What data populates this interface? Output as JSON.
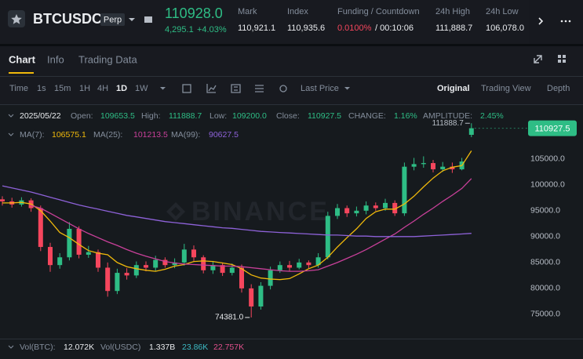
{
  "header": {
    "symbol": "BTCUSDC",
    "badge": "Perp",
    "price": "110928.0",
    "change": "4,295.1",
    "change_pct": "+4.03%",
    "stats": [
      {
        "label": "Mark",
        "value": "110,921.1"
      },
      {
        "label": "Index",
        "value": "110,935.6"
      },
      {
        "label": "Funding / Countdown",
        "value": "0.0100%",
        "extra": "/ 00:10:06"
      },
      {
        "label": "24h High",
        "value": "111,888.7"
      },
      {
        "label": "24h Low",
        "value": "106,078.0"
      }
    ]
  },
  "tabs": [
    "Chart",
    "Info",
    "Trading Data"
  ],
  "toolbar": {
    "intervals": [
      "Time",
      "1s",
      "15m",
      "1H",
      "4H",
      "1D",
      "1W"
    ],
    "price_type": "Last Price",
    "views": [
      "Original",
      "Trading View",
      "Depth"
    ]
  },
  "info": {
    "date": "2025/05/22",
    "fields": [
      {
        "label": "Open:",
        "value": "109653.5"
      },
      {
        "label": "High:",
        "value": "111888.7"
      },
      {
        "label": "Low:",
        "value": "109200.0"
      },
      {
        "label": "Close:",
        "value": "110927.5"
      },
      {
        "label": "CHANGE:",
        "value": "1.16%"
      },
      {
        "label": "AMPLITUDE:",
        "value": "2.45%"
      }
    ]
  },
  "volume_legend": {
    "vol_btc_label": "Vol(BTC):",
    "vol_btc": "12.072K",
    "vol_usdc_label": "Vol(USDC)",
    "vol_usdc": "1.337B",
    "ma5": "23.86K",
    "ma10": "22.757K"
  },
  "chart_data": {
    "type": "candlestick",
    "up_color": "#2ebd85",
    "down_color": "#f6465d",
    "open": [
      97200,
      96800,
      96200,
      97000,
      95500,
      88000,
      84500,
      86000,
      91500,
      86500,
      87000,
      84000,
      79500,
      83000,
      82500,
      84500,
      84000,
      85500,
      84500,
      85000,
      87500,
      86000,
      83500,
      84500,
      83000,
      84000,
      80000,
      76500,
      80500,
      83500,
      84500,
      84000,
      85000,
      84500,
      86000,
      94000,
      95500,
      94500,
      95000,
      96000,
      95500,
      96500,
      94500,
      103500,
      104000,
      104200,
      103000,
      103500,
      103000,
      109653.5
    ],
    "high": [
      97800,
      97500,
      97600,
      97400,
      96000,
      88800,
      86800,
      92800,
      92000,
      88200,
      87500,
      85000,
      83800,
      83900,
      85200,
      85200,
      86300,
      86000,
      85800,
      88600,
      88300,
      86400,
      85300,
      85000,
      84800,
      84600,
      80800,
      81200,
      84200,
      85200,
      85300,
      85700,
      85400,
      86800,
      94800,
      96300,
      96000,
      95800,
      96800,
      96600,
      97300,
      97000,
      104300,
      105200,
      105500,
      104800,
      104400,
      104300,
      105200,
      111888.7
    ],
    "low": [
      96000,
      95600,
      95800,
      94800,
      87200,
      83200,
      83800,
      85400,
      85800,
      85900,
      83200,
      78400,
      78900,
      81700,
      82000,
      83300,
      83400,
      84000,
      83900,
      84400,
      85300,
      82900,
      82800,
      82400,
      82500,
      79200,
      74381,
      75900,
      79800,
      83000,
      83400,
      83700,
      83900,
      84000,
      85600,
      93400,
      93800,
      93900,
      94300,
      95000,
      95000,
      94000,
      94000,
      102800,
      103300,
      102400,
      102500,
      102300,
      102800,
      109200
    ],
    "close": [
      96800,
      96200,
      97000,
      95500,
      88000,
      84500,
      86000,
      91500,
      86500,
      87000,
      84000,
      79500,
      83000,
      82500,
      84500,
      84000,
      85500,
      84500,
      85000,
      87500,
      86000,
      83500,
      84500,
      83000,
      84000,
      80000,
      76500,
      80500,
      83500,
      84500,
      84000,
      85000,
      84500,
      86000,
      94000,
      95500,
      94500,
      95000,
      96000,
      95500,
      96500,
      94500,
      103500,
      104000,
      104200,
      103000,
      103500,
      103000,
      104500,
      110927.5
    ],
    "ma": [
      {
        "name": "MA(7):",
        "last_label": "106575.1",
        "color": "#f0b90b",
        "values": [
          96500,
          96500,
          96600,
          96300,
          95000,
          93000,
          90800,
          89800,
          88500,
          87300,
          86800,
          86500,
          85000,
          84200,
          83800,
          83500,
          83300,
          83700,
          84300,
          84600,
          85200,
          85300,
          85200,
          84900,
          84600,
          83800,
          82600,
          82000,
          81800,
          81700,
          81900,
          82800,
          83800,
          84500,
          86000,
          88000,
          89800,
          91500,
          93500,
          94800,
          95300,
          95300,
          96300,
          97800,
          99600,
          101300,
          102700,
          103400,
          103700,
          106575.1
        ]
      },
      {
        "name": "MA(25):",
        "last_label": "101213.5",
        "color": "#c9409a",
        "values": [
          null,
          null,
          null,
          96000,
          95500,
          94500,
          93500,
          92500,
          91500,
          90600,
          89800,
          89000,
          88300,
          87500,
          86800,
          86200,
          85700,
          85200,
          84900,
          84700,
          84600,
          84500,
          84400,
          84300,
          84300,
          84200,
          84000,
          83800,
          83600,
          83400,
          83300,
          83300,
          83400,
          83600,
          84300,
          85000,
          85800,
          86600,
          87500,
          88500,
          89500,
          90500,
          91800,
          93000,
          94300,
          95500,
          96800,
          98000,
          99300,
          101213.5
        ]
      },
      {
        "name": "MA(99):",
        "last_label": "90627.5",
        "color": "#8e62d9",
        "values": [
          99800,
          99400,
          99000,
          98600,
          98100,
          97600,
          97100,
          96600,
          96100,
          95700,
          95300,
          94900,
          94500,
          94100,
          93800,
          93500,
          93200,
          92900,
          92700,
          92500,
          92300,
          92100,
          91900,
          91700,
          91600,
          91400,
          91200,
          91000,
          90900,
          90800,
          90700,
          90600,
          90500,
          90400,
          90300,
          90300,
          90200,
          90100,
          90100,
          90000,
          90000,
          90000,
          90000,
          90000,
          90100,
          90200,
          90300,
          90400,
          90500,
          90627.5
        ]
      }
    ],
    "ylim": [
      70600,
      114500
    ],
    "yticks": [
      {
        "value": 105000,
        "label": "105000.0"
      },
      {
        "value": 100000,
        "label": "100000.0"
      },
      {
        "value": 95000,
        "label": "95000.0"
      },
      {
        "value": 90000,
        "label": "90000.0"
      },
      {
        "value": 85000,
        "label": "85000.0"
      },
      {
        "value": 80000,
        "label": "80000.0"
      },
      {
        "value": 75000,
        "label": "75000.0"
      }
    ],
    "grid": false,
    "high_label": "111888.7",
    "low_label": "74381.0",
    "last_price_label": "110927.5",
    "watermark": "BINANCE"
  }
}
